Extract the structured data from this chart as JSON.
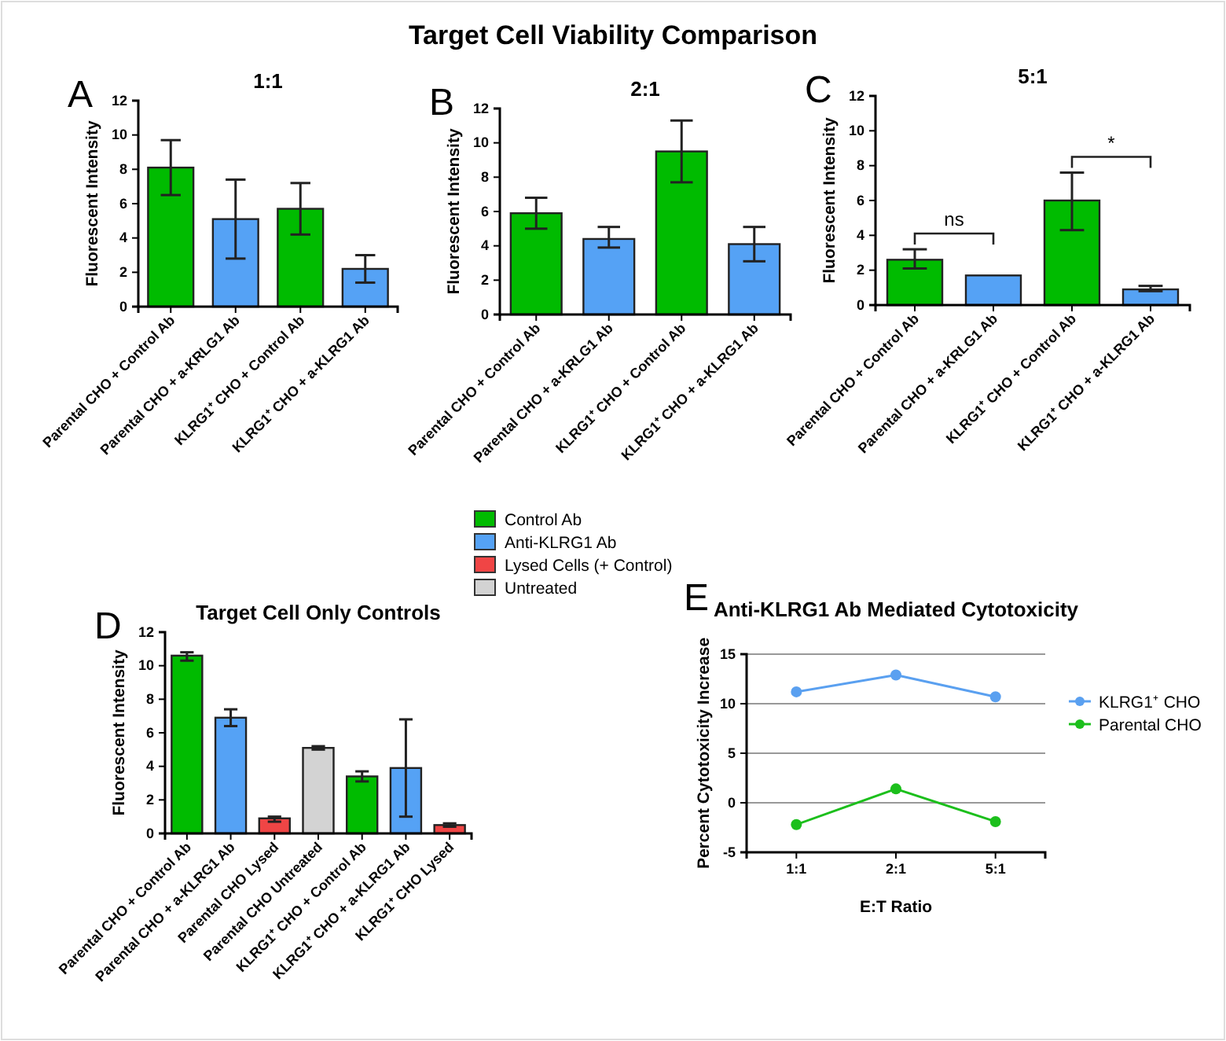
{
  "chart_data": [
    {
      "type": "other",
      "title": "Target Cell Viability Comparison"
    },
    {
      "type": "bar",
      "title": "1:1",
      "annotations": [
        "A"
      ],
      "ylabel": "Fluorescent Intensity",
      "categories": [
        "Parental CHO + Control Ab",
        "Parental CHO + a-KRLG1 Ab",
        "KLRG1⁺ CHO + Control Ab",
        "KLRG1⁺ CHO + a-KLRG1 Ab"
      ],
      "values": [
        8.1,
        5.1,
        5.7,
        2.2
      ],
      "colors": [
        "#00bb00",
        "#55a2f5",
        "#00bb00",
        "#55a2f5"
      ],
      "errors": [
        [
          6.5,
          9.7
        ],
        [
          2.8,
          7.4
        ],
        [
          4.2,
          7.2
        ],
        [
          1.4,
          3.0
        ]
      ],
      "ylim": [
        0,
        12
      ],
      "yticks": [
        0,
        2,
        4,
        6,
        8,
        10,
        12
      ]
    },
    {
      "type": "bar",
      "title": "2:1",
      "annotations": [
        "B"
      ],
      "ylabel": "Fluorescent Intensity",
      "categories": [
        "Parental CHO + Control Ab",
        "Parental CHO + a-KRLG1 Ab",
        "KLRG1⁺ CHO + Control Ab",
        "KLRG1⁺ CHO + a-KLRG1 Ab"
      ],
      "values": [
        5.9,
        4.4,
        9.5,
        4.1
      ],
      "colors": [
        "#00bb00",
        "#55a2f5",
        "#00bb00",
        "#55a2f5"
      ],
      "errors": [
        [
          5.0,
          6.8
        ],
        [
          3.9,
          5.1
        ],
        [
          7.7,
          11.3
        ],
        [
          3.1,
          5.1
        ]
      ],
      "ylim": [
        0,
        12
      ],
      "yticks": [
        0,
        2,
        4,
        6,
        8,
        10,
        12
      ]
    },
    {
      "type": "bar",
      "title": "5:1",
      "annotations": [
        "C",
        "ns",
        "*"
      ],
      "ylabel": "Fluorescent Intensity",
      "categories": [
        "Parental CHO + Control Ab",
        "Parental CHO + a-KRLG1 Ab",
        "KLRG1⁺ CHO + Control Ab",
        "KLRG1⁺ CHO + a-KLRG1 Ab"
      ],
      "values": [
        2.6,
        1.7,
        6.0,
        0.9
      ],
      "colors": [
        "#00bb00",
        "#55a2f5",
        "#00bb00",
        "#55a2f5"
      ],
      "errors": [
        [
          2.1,
          3.2
        ],
        null,
        [
          4.3,
          7.6
        ],
        [
          0.8,
          1.1
        ]
      ],
      "ylim": [
        0,
        12
      ],
      "yticks": [
        0,
        2,
        4,
        6,
        8,
        10,
        12
      ]
    },
    {
      "type": "bar",
      "title": "Target Cell Only Controls",
      "annotations": [
        "D"
      ],
      "ylabel": "Fluorescent Intensity",
      "legend": "top right",
      "categories": [
        "Parental CHO + Control Ab",
        "Parental CHO + a-KLRG1 Ab",
        "Parental CHO Lysed",
        "Parental CHO Untreated",
        "KLRG1⁺ CHO + Control Ab",
        "KLRG1⁺ CHO + a-KLRG1 Ab",
        "KLRG1⁺ CHO Lysed"
      ],
      "series": [
        {
          "name": "Control Ab",
          "color": "#00bb00",
          "values": [
            10.6,
            null,
            null,
            null,
            3.4,
            null,
            null
          ],
          "errors": [
            [
              10.3,
              10.8
            ],
            null,
            null,
            null,
            [
              3.1,
              3.7
            ],
            null,
            null
          ]
        },
        {
          "name": "Anti-KLRG1 Ab",
          "color": "#55a2f5",
          "values": [
            null,
            6.9,
            null,
            null,
            null,
            3.9,
            null
          ],
          "errors": [
            null,
            [
              6.4,
              7.4
            ],
            null,
            null,
            null,
            [
              1.0,
              6.8
            ],
            null
          ]
        },
        {
          "name": "Lysed Cells (+ Control)",
          "color": "#f04545",
          "values": [
            null,
            null,
            0.9,
            null,
            null,
            null,
            0.5
          ],
          "errors": [
            null,
            null,
            [
              0.7,
              1.0
            ],
            null,
            null,
            null,
            [
              0.4,
              0.6
            ]
          ]
        },
        {
          "name": "Untreated",
          "color": "#d3d3d3",
          "values": [
            null,
            null,
            null,
            5.1,
            null,
            null,
            null
          ],
          "errors": [
            null,
            null,
            null,
            [
              5.0,
              5.2
            ],
            null,
            null,
            null
          ]
        }
      ],
      "ylim": [
        0,
        12
      ],
      "yticks": [
        0,
        2,
        4,
        6,
        8,
        10,
        12
      ]
    },
    {
      "type": "line",
      "title": "Anti-KLRG1 Ab Mediated Cytotoxicity",
      "annotations": [
        "E"
      ],
      "ylabel": "Percent Cytotoxicity Increase",
      "xlabel": "E:T Ratio",
      "categories": [
        "1:1",
        "2:1",
        "5:1"
      ],
      "series": [
        {
          "name": "KLRG1⁺ CHO",
          "color": "#5aa0f0",
          "values": [
            11.2,
            12.9,
            10.7
          ]
        },
        {
          "name": "Parental CHO",
          "color": "#1cbf1c",
          "values": [
            -2.2,
            1.4,
            -1.9
          ]
        }
      ],
      "ylim": [
        -5,
        15
      ],
      "yticks": [
        -5,
        0,
        5,
        10,
        15
      ],
      "grid": "y",
      "legend": "right",
      "marker": "circle"
    }
  ]
}
